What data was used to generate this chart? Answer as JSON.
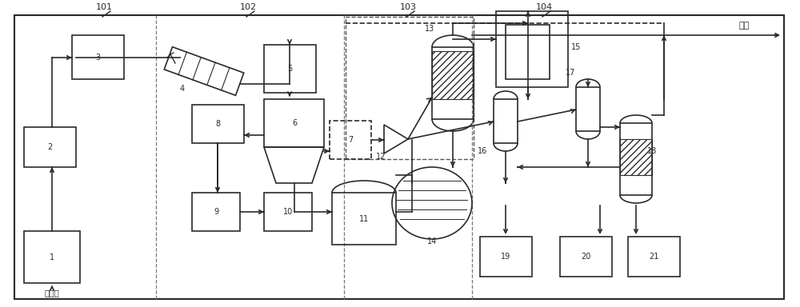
{
  "figure_width": 10.0,
  "figure_height": 3.84,
  "bg_color": "#ffffff",
  "line_color": "#2a2a2a",
  "label_biomass": "生物质",
  "label_power": "发电"
}
